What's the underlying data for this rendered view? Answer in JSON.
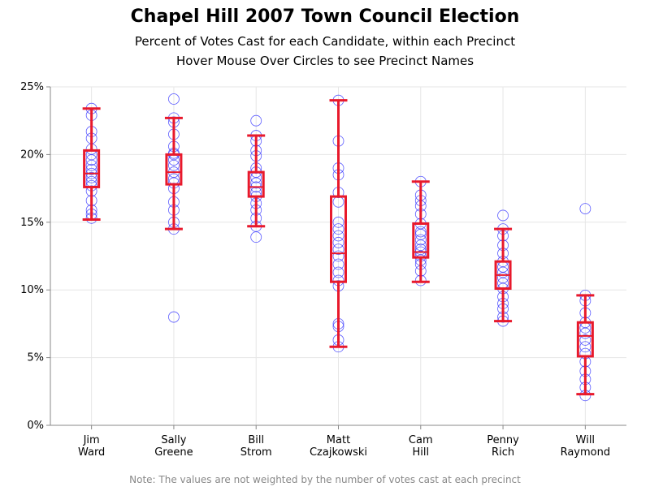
{
  "chart_data": {
    "type": "box",
    "title": "Chapel Hill 2007 Town Council Election",
    "subtitle_lines": [
      "Percent of Votes Cast for each Candidate, within each Precinct",
      "Hover Mouse Over Circles to see Precinct Names"
    ],
    "footnote": "Note: The values are not weighted by the number of votes cast at each precinct",
    "ylim": [
      0,
      25
    ],
    "yticks": [
      0,
      5,
      10,
      15,
      20,
      25
    ],
    "ytick_labels": [
      "0%",
      "5%",
      "10%",
      "15%",
      "20%",
      "25%"
    ],
    "grid": true,
    "colors": {
      "box": "#e8192c",
      "points": "#3333ff",
      "grid": "#e6e6e6",
      "axis": "#888888"
    },
    "candidates": [
      {
        "label_lines": [
          "Jim",
          "Ward"
        ],
        "whisker_low": 15.2,
        "q1": 17.6,
        "median": 18.6,
        "q3": 20.3,
        "whisker_high": 23.4,
        "points": [
          15.3,
          15.6,
          15.9,
          16.6,
          17.3,
          17.7,
          18.0,
          18.3,
          18.6,
          18.9,
          19.2,
          19.6,
          20.0,
          20.4,
          21.2,
          21.7,
          22.9,
          23.4
        ]
      },
      {
        "label_lines": [
          "Sally",
          "Greene"
        ],
        "whisker_low": 14.5,
        "q1": 17.8,
        "median": 18.7,
        "q3": 20.0,
        "whisker_high": 22.7,
        "points": [
          8.0,
          14.5,
          15.0,
          15.9,
          16.5,
          17.5,
          17.9,
          18.2,
          18.7,
          19.2,
          19.6,
          20.0,
          20.1,
          20.6,
          21.5,
          22.4,
          22.7,
          24.1
        ]
      },
      {
        "label_lines": [
          "Bill",
          "Strom"
        ],
        "whisker_low": 14.7,
        "q1": 16.9,
        "median": 17.6,
        "q3": 18.7,
        "whisker_high": 21.4,
        "points": [
          13.9,
          14.7,
          15.3,
          15.9,
          16.4,
          16.9,
          17.2,
          17.6,
          17.9,
          18.3,
          18.7,
          19.0,
          19.9,
          20.3,
          21.0,
          21.4,
          22.5
        ]
      },
      {
        "label_lines": [
          "Matt",
          "Czajkowski"
        ],
        "whisker_low": 5.8,
        "q1": 10.6,
        "median": 12.7,
        "q3": 16.9,
        "whisker_high": 24.0,
        "points": [
          5.8,
          6.3,
          7.3,
          7.5,
          10.3,
          10.7,
          11.3,
          11.9,
          12.5,
          13.0,
          13.5,
          14.0,
          14.5,
          15.0,
          16.5,
          17.2,
          18.5,
          19.0,
          21.0,
          24.0
        ]
      },
      {
        "label_lines": [
          "Cam",
          "Hill"
        ],
        "whisker_low": 10.6,
        "q1": 12.4,
        "median": 12.8,
        "q3": 14.9,
        "whisker_high": 18.0,
        "points": [
          10.7,
          11.4,
          11.9,
          12.2,
          12.5,
          12.8,
          13.0,
          13.3,
          13.7,
          14.1,
          14.3,
          14.9,
          15.6,
          16.2,
          16.6,
          17.0,
          18.0
        ]
      },
      {
        "label_lines": [
          "Penny",
          "Rich"
        ],
        "whisker_low": 7.7,
        "q1": 10.1,
        "median": 11.1,
        "q3": 12.1,
        "whisker_high": 14.5,
        "points": [
          7.7,
          8.0,
          8.6,
          9.0,
          9.5,
          10.1,
          10.5,
          10.9,
          11.3,
          11.7,
          12.1,
          12.7,
          13.3,
          14.0,
          14.5,
          15.5
        ]
      },
      {
        "label_lines": [
          "Will",
          "Raymond"
        ],
        "whisker_low": 2.3,
        "q1": 5.1,
        "median": 6.6,
        "q3": 7.6,
        "whisker_high": 9.6,
        "points": [
          2.2,
          2.8,
          3.4,
          4.0,
          4.7,
          5.3,
          5.8,
          6.3,
          6.8,
          7.2,
          7.6,
          8.3,
          9.2,
          9.6,
          16.0
        ]
      }
    ]
  }
}
